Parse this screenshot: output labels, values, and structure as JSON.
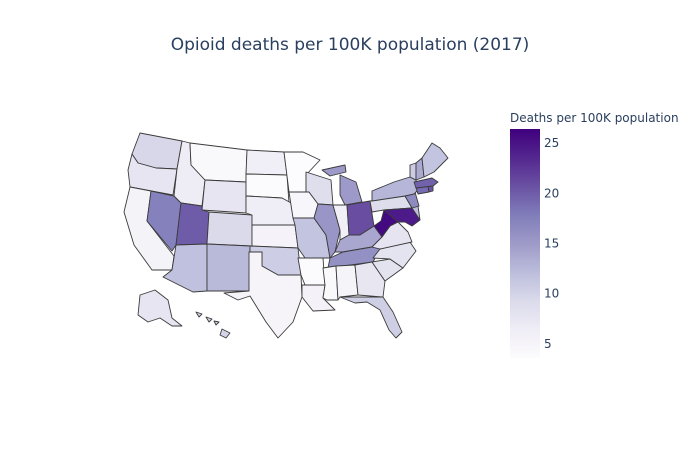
{
  "title": "Opioid deaths per 100K population (2017)",
  "colorbar": {
    "title": "Deaths per 100K population",
    "range": [
      3.6,
      26.4
    ],
    "ticks": [
      5,
      10,
      15,
      20,
      25
    ],
    "colorscale": [
      "#fcfbfd",
      "#efedf5",
      "#dadaeb",
      "#bcbddc",
      "#9e9ac8",
      "#807dba",
      "#6a51a3",
      "#54278f",
      "#3f007d"
    ]
  },
  "chart_data": {
    "type": "choropleth",
    "title": "Opioid deaths per 100K population (2017)",
    "colorbar_title": "Deaths per 100K population",
    "zrange": [
      3.6,
      26.4
    ],
    "states": [
      {
        "code": "WA",
        "value": 9.6
      },
      {
        "code": "OR",
        "value": 7.6
      },
      {
        "code": "CA",
        "value": 5.3
      },
      {
        "code": "NV",
        "value": 17.5
      },
      {
        "code": "ID",
        "value": 6.6
      },
      {
        "code": "MT",
        "value": 4.3
      },
      {
        "code": "WY",
        "value": 7.7
      },
      {
        "code": "UT",
        "value": 20.0
      },
      {
        "code": "AZ",
        "value": 11.8
      },
      {
        "code": "CO",
        "value": 9.3
      },
      {
        "code": "NM",
        "value": 12.4
      },
      {
        "code": "ND",
        "value": 6.2
      },
      {
        "code": "SD",
        "value": 3.8
      },
      {
        "code": "NE",
        "value": 6.5
      },
      {
        "code": "KS",
        "value": 5.2
      },
      {
        "code": "OK",
        "value": 10.5
      },
      {
        "code": "TX",
        "value": 5.0
      },
      {
        "code": "MN",
        "value": 3.6
      },
      {
        "code": "IA",
        "value": 4.6
      },
      {
        "code": "MO",
        "value": 11.5
      },
      {
        "code": "AR",
        "value": 3.9
      },
      {
        "code": "LA",
        "value": 5.4
      },
      {
        "code": "WI",
        "value": 8.7
      },
      {
        "code": "IL",
        "value": 15.5
      },
      {
        "code": "MI",
        "value": 15.1
      },
      {
        "code": "IN",
        "value": 5.8
      },
      {
        "code": "OH",
        "value": 21.0
      },
      {
        "code": "KY",
        "value": 14.0
      },
      {
        "code": "TN",
        "value": 16.0
      },
      {
        "code": "MS",
        "value": 4.2
      },
      {
        "code": "AL",
        "value": 5.1
      },
      {
        "code": "GA",
        "value": 7.5
      },
      {
        "code": "FL",
        "value": 10.4
      },
      {
        "code": "SC",
        "value": 8.1
      },
      {
        "code": "NC",
        "value": 7.9
      },
      {
        "code": "VA",
        "value": 7.8
      },
      {
        "code": "WV",
        "value": 25.7
      },
      {
        "code": "PA",
        "value": 8.9
      },
      {
        "code": "MD",
        "value": 24.5
      },
      {
        "code": "DE",
        "value": 12.0
      },
      {
        "code": "NJ",
        "value": 16.5
      },
      {
        "code": "NY",
        "value": 12.7
      },
      {
        "code": "CT",
        "value": 19.0
      },
      {
        "code": "RI",
        "value": 20.5
      },
      {
        "code": "MA",
        "value": 19.6
      },
      {
        "code": "VT",
        "value": 10.7
      },
      {
        "code": "NH",
        "value": 13.8
      },
      {
        "code": "ME",
        "value": 11.5
      },
      {
        "code": "AK",
        "value": 7.7
      },
      {
        "code": "HI",
        "value": 9.9
      }
    ]
  }
}
